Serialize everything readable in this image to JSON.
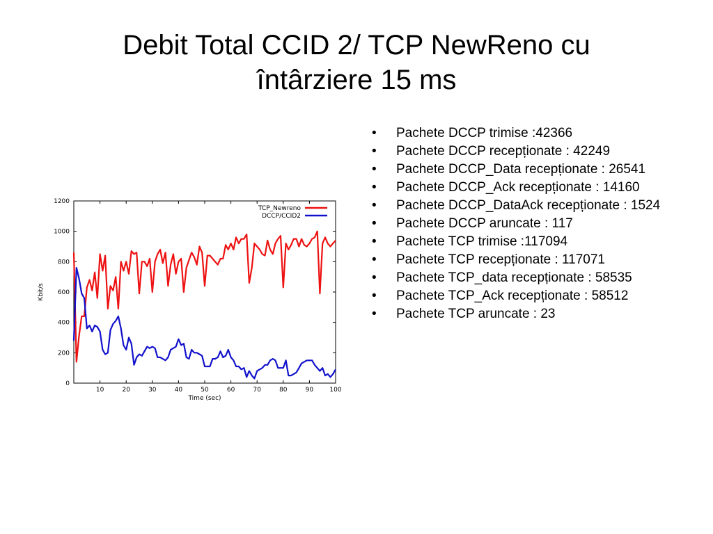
{
  "slide": {
    "title_line1": "Debit Total CCID 2/ TCP NewReno cu",
    "title_line2": "întârziere 15 ms",
    "bullet_char": "•",
    "bullets": [
      "Pachete DCCP trimise :42366",
      " Pachete DCCP recepționate : 42249",
      " Pachete DCCP_Data recepționate : 26541",
      " Pachete DCCP_Ack recepționate : 14160",
      " Pachete DCCP_DataAck recepționate : 1524",
      " Pachete DCCP aruncate : 117",
      " Pachete TCP trimise :117094",
      " Pachete TCP recepționate : 117071",
      " Pachete TCP_data recepționate : 58535",
      " Pachete TCP_Ack recepționate : 58512",
      " Pachete TCP aruncate : 23"
    ]
  },
  "chart_data": {
    "type": "line",
    "title": "",
    "xlabel": "Time (sec)",
    "ylabel": "Kbit/s",
    "xlim": [
      0,
      100
    ],
    "ylim": [
      0,
      1200
    ],
    "xticks": [
      10,
      20,
      30,
      40,
      50,
      60,
      70,
      80,
      90,
      100
    ],
    "yticks": [
      0,
      200,
      400,
      600,
      800,
      1000,
      1200
    ],
    "grid": false,
    "legend_position": "top-right",
    "x": [
      0,
      1,
      2,
      3,
      4,
      5,
      6,
      7,
      8,
      9,
      10,
      11,
      12,
      13,
      14,
      15,
      16,
      17,
      18,
      19,
      20,
      21,
      22,
      23,
      24,
      25,
      26,
      27,
      28,
      29,
      30,
      31,
      32,
      33,
      34,
      35,
      36,
      37,
      38,
      39,
      40,
      41,
      42,
      43,
      44,
      45,
      46,
      47,
      48,
      49,
      50,
      51,
      52,
      53,
      54,
      55,
      56,
      57,
      58,
      59,
      60,
      61,
      62,
      63,
      64,
      65,
      66,
      67,
      68,
      69,
      70,
      71,
      72,
      73,
      74,
      75,
      76,
      77,
      78,
      79,
      80,
      81,
      82,
      83,
      84,
      85,
      86,
      87,
      88,
      89,
      90,
      91,
      92,
      93,
      94,
      95,
      96,
      97,
      98,
      99,
      100
    ],
    "series": [
      {
        "name": "TCP_Newreno",
        "color": "#ee1111",
        "values": [
          860,
          140,
          310,
          440,
          440,
          630,
          680,
          610,
          730,
          560,
          850,
          740,
          840,
          490,
          640,
          610,
          700,
          490,
          800,
          740,
          800,
          720,
          870,
          850,
          860,
          590,
          800,
          800,
          770,
          820,
          600,
          800,
          850,
          880,
          790,
          860,
          640,
          780,
          850,
          720,
          800,
          820,
          600,
          760,
          810,
          860,
          830,
          780,
          900,
          860,
          640,
          840,
          840,
          820,
          800,
          780,
          820,
          820,
          910,
          880,
          920,
          880,
          960,
          920,
          950,
          950,
          980,
          660,
          760,
          920,
          900,
          880,
          850,
          840,
          940,
          880,
          850,
          920,
          950,
          970,
          630,
          920,
          880,
          910,
          950,
          950,
          900,
          950,
          910,
          900,
          920,
          950,
          960,
          1000,
          590,
          920,
          960,
          920,
          900,
          920,
          940
        ]
      },
      {
        "name": "DCCP/CCID2",
        "color": "#1111cc",
        "values": [
          280,
          760,
          690,
          590,
          560,
          360,
          380,
          340,
          380,
          370,
          340,
          220,
          190,
          200,
          350,
          390,
          410,
          440,
          360,
          250,
          220,
          300,
          260,
          120,
          170,
          190,
          180,
          210,
          240,
          230,
          240,
          230,
          170,
          170,
          160,
          150,
          170,
          220,
          230,
          240,
          290,
          250,
          260,
          170,
          160,
          220,
          200,
          200,
          190,
          180,
          110,
          110,
          110,
          160,
          160,
          170,
          210,
          170,
          180,
          220,
          170,
          150,
          110,
          110,
          90,
          100,
          40,
          80,
          50,
          30,
          80,
          90,
          100,
          120,
          120,
          150,
          160,
          150,
          100,
          100,
          100,
          150,
          50,
          50,
          60,
          70,
          100,
          130,
          140,
          150,
          150,
          150,
          120,
          100,
          80,
          100,
          50,
          60,
          40,
          60,
          90
        ]
      }
    ]
  }
}
